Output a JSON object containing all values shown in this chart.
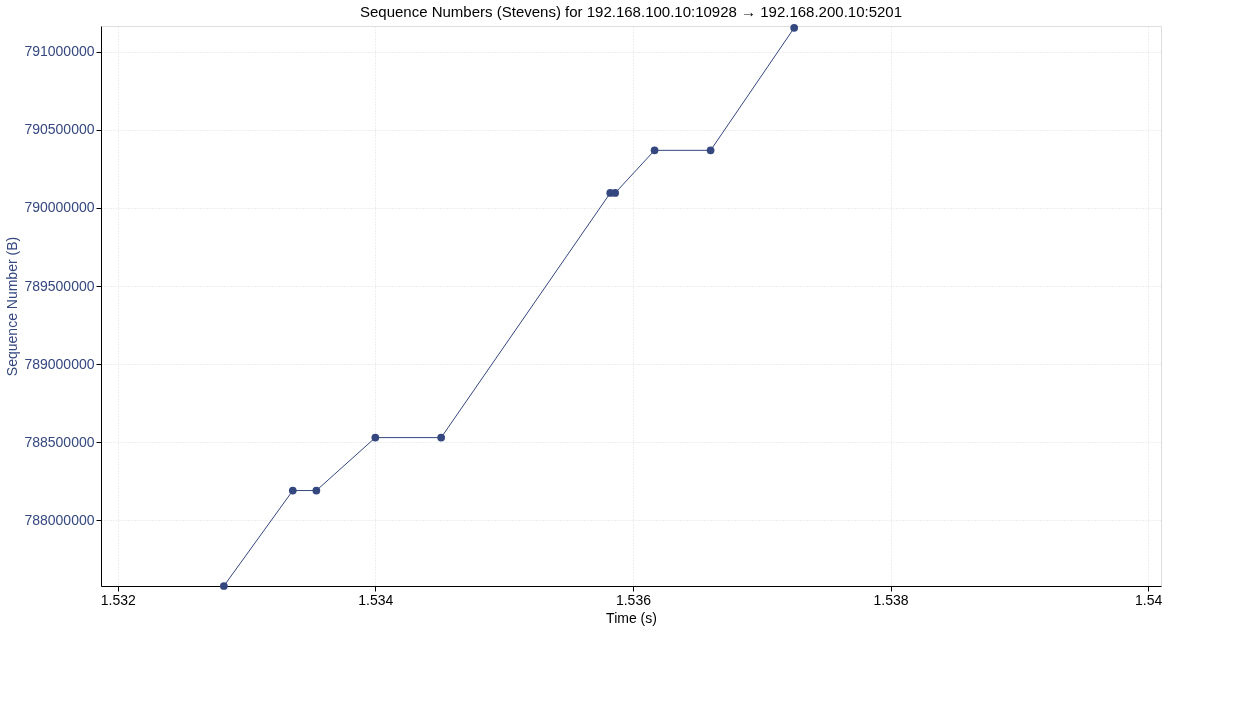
{
  "chart_data": {
    "type": "line",
    "title": "Sequence Numbers (Stevens) for 192.168.100.10:10928 → 192.168.200.10:5201",
    "xlabel": "Time (s)",
    "ylabel": "Sequence Number (B)",
    "x": [
      1.532824,
      1.533359,
      1.533542,
      1.534,
      1.534511,
      1.535824,
      1.535862,
      1.536168,
      1.536603,
      1.537252
    ],
    "series": [
      {
        "color": "#34477f",
        "values": [
          787580000,
          788191000,
          788191000,
          788530000,
          788530000,
          790096000,
          790096000,
          790369000,
          790369000,
          791153000
        ]
      }
    ],
    "xlim": [
      1.53187,
      1.5401
    ],
    "xticks": [
      1.532,
      1.534,
      1.536,
      1.538,
      1.54
    ],
    "ylim": [
      787580000,
      791165000
    ],
    "yticks": [
      788000000,
      788500000,
      789000000,
      789500000,
      790000000,
      790500000,
      791000000
    ],
    "grid": true,
    "marker": "circle",
    "line_style": "solid"
  }
}
